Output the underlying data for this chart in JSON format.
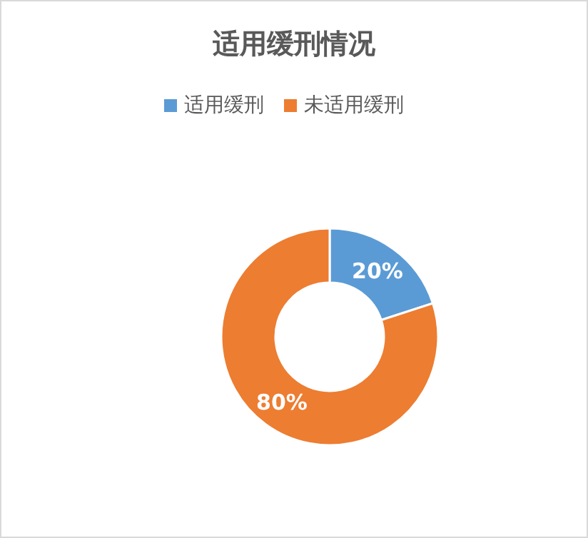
{
  "chart_data": {
    "type": "donut",
    "title": "适用缓刑情况",
    "categories": [
      "适用缓刑",
      "未适用缓刑"
    ],
    "values": [
      20,
      80
    ],
    "colors": [
      "#5b9bd5",
      "#ed7d31"
    ],
    "value_labels": [
      "20%",
      "80%"
    ],
    "legend": "top"
  }
}
